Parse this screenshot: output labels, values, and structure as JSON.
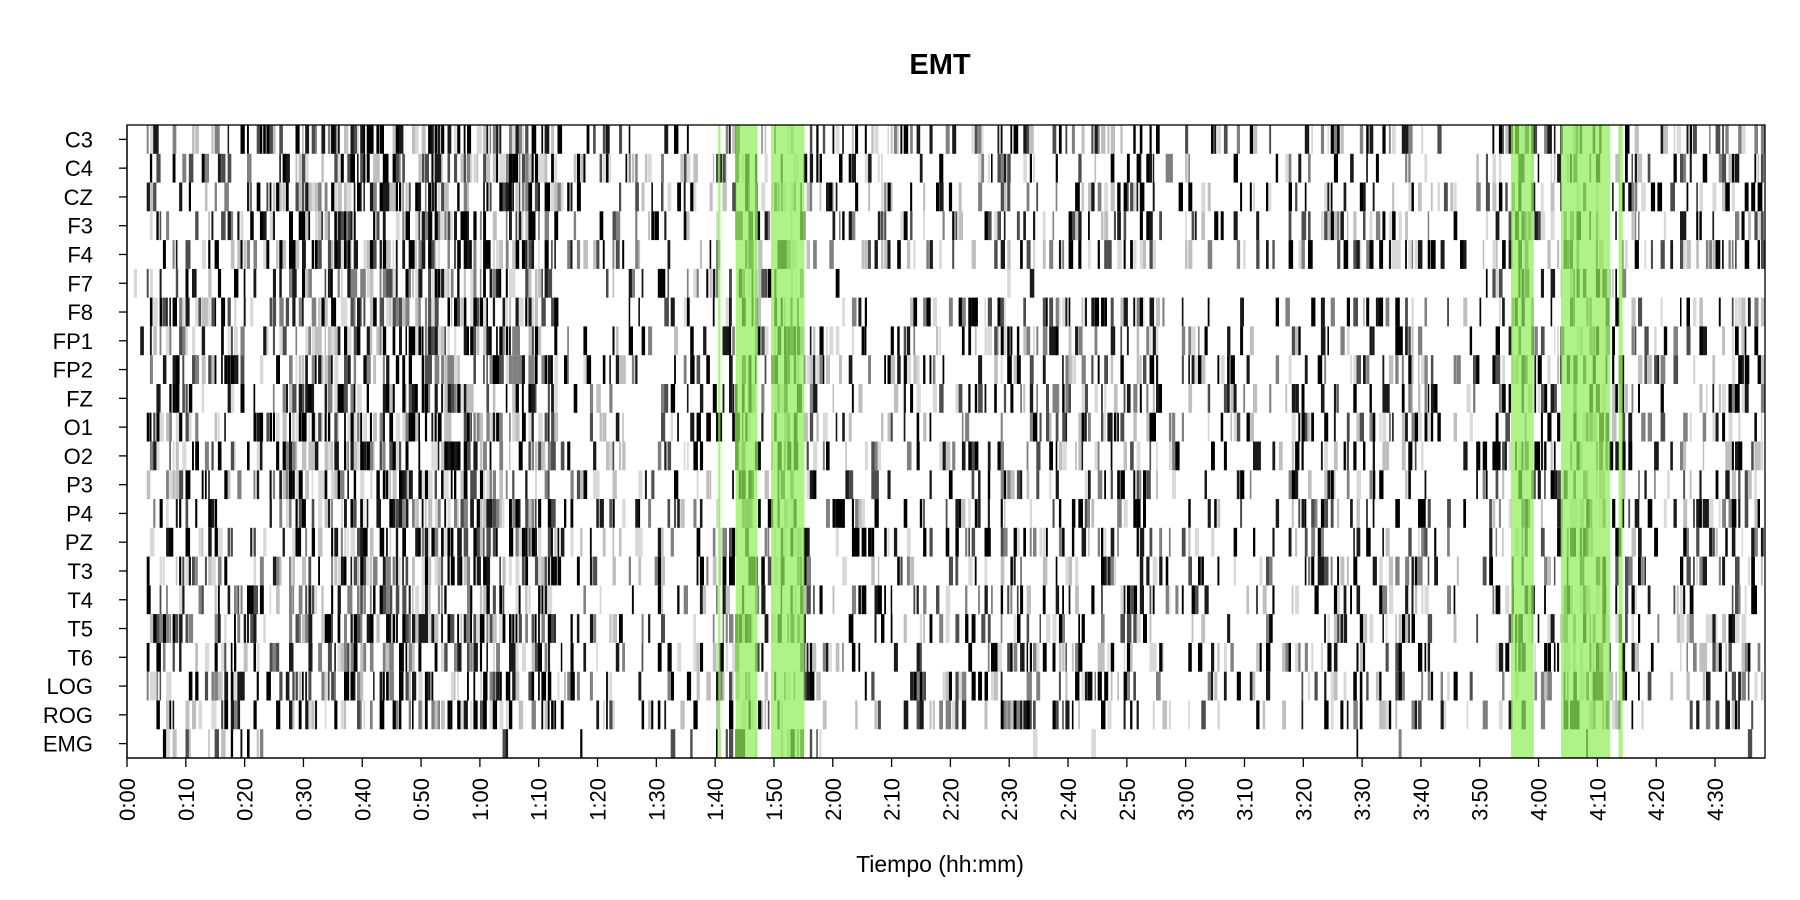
{
  "chart_data": {
    "type": "heatmap",
    "title": "EMT",
    "xlabel": "Tiempo (hh:mm)",
    "ylabel": "",
    "channels": [
      "C3",
      "C4",
      "CZ",
      "F3",
      "F4",
      "F7",
      "F8",
      "FP1",
      "FP2",
      "FZ",
      "O1",
      "O2",
      "P3",
      "P4",
      "PZ",
      "T3",
      "T4",
      "T5",
      "T6",
      "LOG",
      "ROG",
      "EMG"
    ],
    "x_ticks": [
      "0:00",
      "0:10",
      "0:20",
      "0:30",
      "0:40",
      "0:50",
      "1:00",
      "1:10",
      "1:20",
      "1:30",
      "1:40",
      "1:50",
      "2:00",
      "2:10",
      "2:20",
      "2:30",
      "2:40",
      "2:50",
      "3:00",
      "3:10",
      "3:20",
      "3:30",
      "3:40",
      "3:50",
      "4:00",
      "4:10",
      "4:20",
      "4:30"
    ],
    "x_tick_minutes": [
      0,
      10,
      20,
      30,
      40,
      50,
      60,
      70,
      80,
      90,
      100,
      110,
      120,
      130,
      140,
      150,
      160,
      170,
      180,
      190,
      200,
      210,
      220,
      230,
      240,
      250,
      260,
      270
    ],
    "xlim_minutes": [
      0,
      278.5
    ],
    "grid": false,
    "highlight_color": "#90ee5a",
    "highlights_minutes": [
      [
        100.5,
        100.9
      ],
      [
        103.5,
        107.2
      ],
      [
        109.5,
        115.2
      ],
      [
        235.3,
        239.2
      ],
      [
        243.8,
        252.2
      ],
      [
        253.6,
        254.3
      ]
    ],
    "activity_profile": [
      {
        "range": [
          0,
          3
        ],
        "density": 0.02
      },
      {
        "range": [
          3,
          28
        ],
        "density": 0.55
      },
      {
        "range": [
          28,
          73
        ],
        "density": 0.85
      },
      {
        "range": [
          73,
          100
        ],
        "density": 0.35
      },
      {
        "range": [
          100,
          117
        ],
        "density": 0.6
      },
      {
        "range": [
          117,
          147
        ],
        "density": 0.4
      },
      {
        "range": [
          147,
          175
        ],
        "density": 0.55
      },
      {
        "range": [
          175,
          197
        ],
        "density": 0.28
      },
      {
        "range": [
          197,
          222
        ],
        "density": 0.55
      },
      {
        "range": [
          222,
          232
        ],
        "density": 0.2
      },
      {
        "range": [
          232,
          257
        ],
        "density": 0.55
      },
      {
        "range": [
          257,
          264
        ],
        "density": 0.25
      },
      {
        "range": [
          264,
          278.5
        ],
        "density": 0.6
      }
    ],
    "quiet_channels_by_period": {
      "F7": [
        [
          115,
          230
        ],
        [
          255,
          278.5
        ]
      ],
      "EMG": [
        [
          0,
          5
        ],
        [
          23,
          100
        ],
        [
          118,
          278.5
        ]
      ]
    }
  }
}
